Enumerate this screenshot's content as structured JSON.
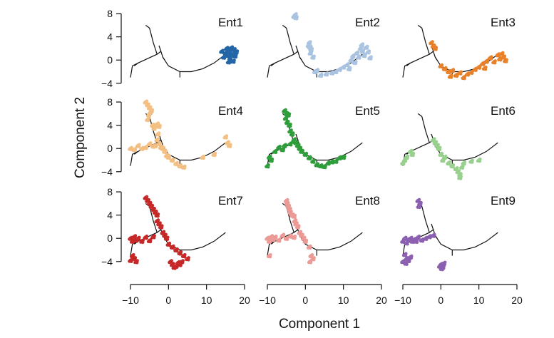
{
  "chart_data": {
    "type": "scatter",
    "title": "",
    "xlabel": "Component 1",
    "ylabel": "Component 2",
    "xlim": [
      -12,
      20
    ],
    "ylim": [
      -5.5,
      8.5
    ],
    "x_ticks": [
      -10,
      0,
      10,
      20
    ],
    "y_ticks": [
      8,
      4,
      0,
      -4
    ],
    "grid": false,
    "layout": "3x3 small multiples",
    "trajectory_tree": [
      [
        [
          -10,
          -3
        ],
        [
          -9.5,
          -1
        ],
        [
          -8,
          -0.5
        ],
        [
          -3,
          1
        ],
        [
          -2,
          1.5
        ],
        [
          -1.5,
          0.5
        ],
        [
          0,
          -1
        ],
        [
          3,
          -2
        ],
        [
          6,
          -2
        ],
        [
          9,
          -1.5
        ],
        [
          12,
          -0.5
        ],
        [
          15,
          1
        ]
      ],
      [
        [
          -3,
          1
        ],
        [
          -4,
          3
        ],
        [
          -5,
          5.5
        ],
        [
          -6,
          6
        ]
      ],
      [
        [
          -2,
          1.5
        ],
        [
          -2.5,
          2.5
        ]
      ],
      [
        [
          -8,
          -0.5
        ],
        [
          -9,
          -1
        ]
      ],
      [
        [
          3,
          -2
        ],
        [
          3,
          -3
        ]
      ],
      [
        [
          -1.5,
          0.5
        ],
        [
          -1,
          0
        ]
      ]
    ],
    "panels": [
      {
        "name": "Ent1",
        "color": "#2366a8",
        "points": [
          [
            14,
            1.5
          ],
          [
            14.5,
            0.5
          ],
          [
            15,
            1.2
          ],
          [
            15.3,
            2
          ],
          [
            15.6,
            0.8
          ],
          [
            16,
            1.5
          ],
          [
            16.2,
            0.3
          ],
          [
            16.5,
            2.1
          ],
          [
            16.8,
            1
          ],
          [
            17,
            -0.2
          ],
          [
            17.2,
            1.8
          ],
          [
            17.5,
            0.7
          ],
          [
            17.8,
            1.4
          ],
          [
            15.8,
            -0.3
          ]
        ]
      },
      {
        "name": "Ent2",
        "color": "#a9c3e0",
        "points": [
          [
            -3,
            7.5
          ],
          [
            -2.7,
            7.8
          ],
          [
            -2.5,
            7.3
          ],
          [
            1,
            3
          ],
          [
            1.2,
            2.2
          ],
          [
            1.5,
            1.8
          ],
          [
            0.8,
            2.5
          ],
          [
            1.3,
            1.2
          ],
          [
            2,
            0.5
          ],
          [
            3,
            -1.8
          ],
          [
            2.5,
            -2
          ],
          [
            4,
            -2.6
          ],
          [
            5.5,
            -2.4
          ],
          [
            7,
            -2.2
          ],
          [
            8,
            -2
          ],
          [
            9,
            -1.6
          ],
          [
            10,
            -1.2
          ],
          [
            11,
            -0.8
          ],
          [
            11.5,
            -1.5
          ],
          [
            12,
            0
          ],
          [
            12.5,
            0.7
          ],
          [
            13,
            -0.4
          ],
          [
            13.5,
            1.2
          ],
          [
            14,
            0.5
          ],
          [
            14.5,
            2
          ],
          [
            15,
            1.5
          ],
          [
            15.5,
            0.8
          ],
          [
            16,
            2.2
          ],
          [
            16.5,
            1.4
          ],
          [
            17,
            0.4
          ],
          [
            14.8,
            2.6
          ]
        ]
      },
      {
        "name": "Ent3",
        "color": "#e8812a",
        "points": [
          [
            -2.5,
            3
          ],
          [
            -2,
            2.4
          ],
          [
            -1.5,
            2
          ],
          [
            0,
            -1
          ],
          [
            1,
            -1.5
          ],
          [
            2,
            -2
          ],
          [
            2.5,
            -2.8
          ],
          [
            3,
            -1.8
          ],
          [
            4,
            -2.6
          ],
          [
            5,
            -2.2
          ],
          [
            6,
            -3
          ],
          [
            7,
            -2.4
          ],
          [
            8,
            -2.1
          ],
          [
            9,
            -1.6
          ],
          [
            10,
            -1.2
          ],
          [
            11,
            -0.6
          ],
          [
            11.5,
            -1.4
          ],
          [
            12,
            -0.2
          ],
          [
            13,
            0.4
          ],
          [
            14,
            -0.3
          ],
          [
            15,
            0.9
          ],
          [
            15.5,
            0.2
          ],
          [
            16,
            1.1
          ],
          [
            16.5,
            0.5
          ],
          [
            17,
            -0.1
          ]
        ]
      },
      {
        "name": "Ent4",
        "color": "#f4bf82",
        "points": [
          [
            -6,
            8
          ],
          [
            -5.5,
            7.5
          ],
          [
            -5,
            7
          ],
          [
            -4.5,
            6.5
          ],
          [
            -5.2,
            5.8
          ],
          [
            -4.8,
            6.2
          ],
          [
            -5.5,
            5
          ],
          [
            -4.2,
            4
          ],
          [
            -3.8,
            3.5
          ],
          [
            -3,
            4.2
          ],
          [
            -2.5,
            3.8
          ],
          [
            -2.8,
            2.5
          ],
          [
            -3,
            1.5
          ],
          [
            -2.5,
            0.8
          ],
          [
            -3.5,
            0.5
          ],
          [
            -2,
            0.2
          ],
          [
            -1.5,
            0
          ],
          [
            -1,
            -0.5
          ],
          [
            -0.5,
            -1.2
          ],
          [
            0,
            -1.5
          ],
          [
            1,
            -2
          ],
          [
            2,
            -2.6
          ],
          [
            3,
            -3
          ],
          [
            4,
            -3.2
          ],
          [
            -9,
            -0.2
          ],
          [
            -8,
            0.5
          ],
          [
            -7,
            0
          ],
          [
            -6,
            0.2
          ],
          [
            -5,
            0.8
          ],
          [
            -4,
            0.4
          ],
          [
            9,
            -1.5
          ],
          [
            12,
            -1
          ],
          [
            15,
            2
          ],
          [
            15.5,
            1
          ],
          [
            16,
            0.5
          ],
          [
            -10,
            0
          ]
        ]
      },
      {
        "name": "Ent5",
        "color": "#2e9e3a",
        "points": [
          [
            -5.5,
            6.5
          ],
          [
            -5,
            6
          ],
          [
            -4.5,
            5.8
          ],
          [
            -5.2,
            5.2
          ],
          [
            -4.8,
            4.5
          ],
          [
            -4.2,
            4
          ],
          [
            -4,
            3
          ],
          [
            -3.5,
            2.5
          ],
          [
            -3,
            1.5
          ],
          [
            -2.5,
            1
          ],
          [
            -2,
            0.5
          ],
          [
            -1.5,
            0
          ],
          [
            -1,
            -0.5
          ],
          [
            0,
            -1
          ],
          [
            1,
            -1.6
          ],
          [
            2,
            -2.2
          ],
          [
            3,
            -2.8
          ],
          [
            4,
            -3
          ],
          [
            5,
            -3.1
          ],
          [
            6,
            -2.5
          ],
          [
            7,
            -2.3
          ],
          [
            8,
            -2.2
          ],
          [
            9,
            -1.6
          ],
          [
            10,
            -1.5
          ],
          [
            -9,
            -2
          ],
          [
            -9.5,
            -1.5
          ],
          [
            -8,
            -0.5
          ],
          [
            -7,
            0.2
          ],
          [
            -6,
            -0.2
          ],
          [
            -10,
            -3
          ],
          [
            -5.5,
            0.5
          ],
          [
            -4,
            0.8
          ]
        ]
      },
      {
        "name": "Ent6",
        "color": "#98d18e",
        "points": [
          [
            -10,
            -2.5
          ],
          [
            -9.5,
            -2
          ],
          [
            -9,
            -1.5
          ],
          [
            -8,
            -0.5
          ],
          [
            -7.5,
            -1
          ],
          [
            -2,
            1.5
          ],
          [
            -1.5,
            1
          ],
          [
            -1,
            0.5
          ],
          [
            -0.5,
            0
          ],
          [
            0,
            -1
          ],
          [
            0.5,
            -2
          ],
          [
            1,
            -1.5
          ],
          [
            2,
            -2.5
          ],
          [
            3,
            -3
          ],
          [
            4,
            -3.5
          ],
          [
            4.5,
            -4
          ],
          [
            5,
            -4.5
          ],
          [
            5.5,
            -3.2
          ],
          [
            5,
            -5
          ],
          [
            6,
            -2.5
          ],
          [
            8,
            -2.2
          ],
          [
            10,
            -2
          ]
        ]
      },
      {
        "name": "Ent7",
        "color": "#c62828",
        "points": [
          [
            -6,
            7
          ],
          [
            -5.5,
            6.5
          ],
          [
            -5,
            6
          ],
          [
            -4.5,
            5.5
          ],
          [
            -4,
            5
          ],
          [
            -3.5,
            4.5
          ],
          [
            -3,
            4
          ],
          [
            -3,
            3
          ],
          [
            -2.5,
            2.5
          ],
          [
            -2,
            2
          ],
          [
            -1.5,
            1
          ],
          [
            -1,
            0.5
          ],
          [
            -0.5,
            0
          ],
          [
            0,
            -1
          ],
          [
            1,
            -1.5
          ],
          [
            2,
            -2
          ],
          [
            3,
            -2.5
          ],
          [
            4,
            -3
          ],
          [
            5,
            -3.5
          ],
          [
            -10,
            0
          ],
          [
            -9.5,
            -0.5
          ],
          [
            -9,
            0.3
          ],
          [
            -8.5,
            -0.3
          ],
          [
            -8,
            0
          ],
          [
            -7,
            -0.5
          ],
          [
            -6,
            0.2
          ],
          [
            -5,
            -0.4
          ],
          [
            -4,
            0.3
          ],
          [
            -9.5,
            -3
          ],
          [
            -9,
            -3.5
          ],
          [
            -10,
            -3.8
          ],
          [
            -8.5,
            -4
          ],
          [
            1,
            -4.5
          ],
          [
            1.5,
            -5
          ],
          [
            2,
            -4.8
          ],
          [
            2.5,
            -4.2
          ],
          [
            3,
            -4.5
          ],
          [
            0.5,
            -4
          ],
          [
            3.5,
            -4
          ]
        ]
      },
      {
        "name": "Ent8",
        "color": "#ec9a96",
        "points": [
          [
            -5,
            6.5
          ],
          [
            -4.8,
            6
          ],
          [
            -4.5,
            5.5
          ],
          [
            -4.2,
            5
          ],
          [
            -4,
            4.5
          ],
          [
            -3.5,
            4
          ],
          [
            -3,
            3.8
          ],
          [
            -2.8,
            3
          ],
          [
            -2.5,
            2.5
          ],
          [
            -2,
            2
          ],
          [
            -1.5,
            1
          ],
          [
            -1,
            0.5
          ],
          [
            -0.5,
            0
          ],
          [
            0,
            -0.5
          ],
          [
            -10,
            0
          ],
          [
            -9.5,
            -0.5
          ],
          [
            -9,
            0.3
          ],
          [
            -8.5,
            -0.2
          ],
          [
            -8,
            0.2
          ],
          [
            -7,
            -0.3
          ],
          [
            -6,
            0.5
          ],
          [
            -5,
            0
          ],
          [
            -4,
            0.4
          ],
          [
            -3,
            0.2
          ],
          [
            -9.5,
            -3
          ],
          [
            1,
            -1.5
          ],
          [
            1.5,
            -3
          ],
          [
            2,
            -3.5
          ],
          [
            1.2,
            -4
          ]
        ]
      },
      {
        "name": "Ent9",
        "color": "#8c60b0",
        "points": [
          [
            -6,
            6.5
          ],
          [
            -5.5,
            6
          ],
          [
            -5.8,
            5.5
          ],
          [
            -10,
            -0.5
          ],
          [
            -9.5,
            0
          ],
          [
            -9,
            -0.8
          ],
          [
            -8.5,
            -0.2
          ],
          [
            -8,
            0
          ],
          [
            -7.5,
            -0.5
          ],
          [
            -7,
            -0.2
          ],
          [
            -6.5,
            -0.5
          ],
          [
            -6,
            0.2
          ],
          [
            -5,
            -0.3
          ],
          [
            -4,
            0
          ],
          [
            -3,
            0.3
          ],
          [
            -2,
            0.5
          ],
          [
            -9.5,
            -2.8
          ],
          [
            -9,
            -3.5
          ],
          [
            -10,
            -4
          ],
          [
            -8.5,
            -3.8
          ],
          [
            -9.2,
            -4.3
          ],
          [
            -8,
            -3.2
          ],
          [
            0,
            -4.5
          ],
          [
            0.5,
            -5
          ],
          [
            0.2,
            -5.2
          ],
          [
            -0.3,
            -4.8
          ],
          [
            0.8,
            -4.3
          ]
        ]
      }
    ]
  }
}
